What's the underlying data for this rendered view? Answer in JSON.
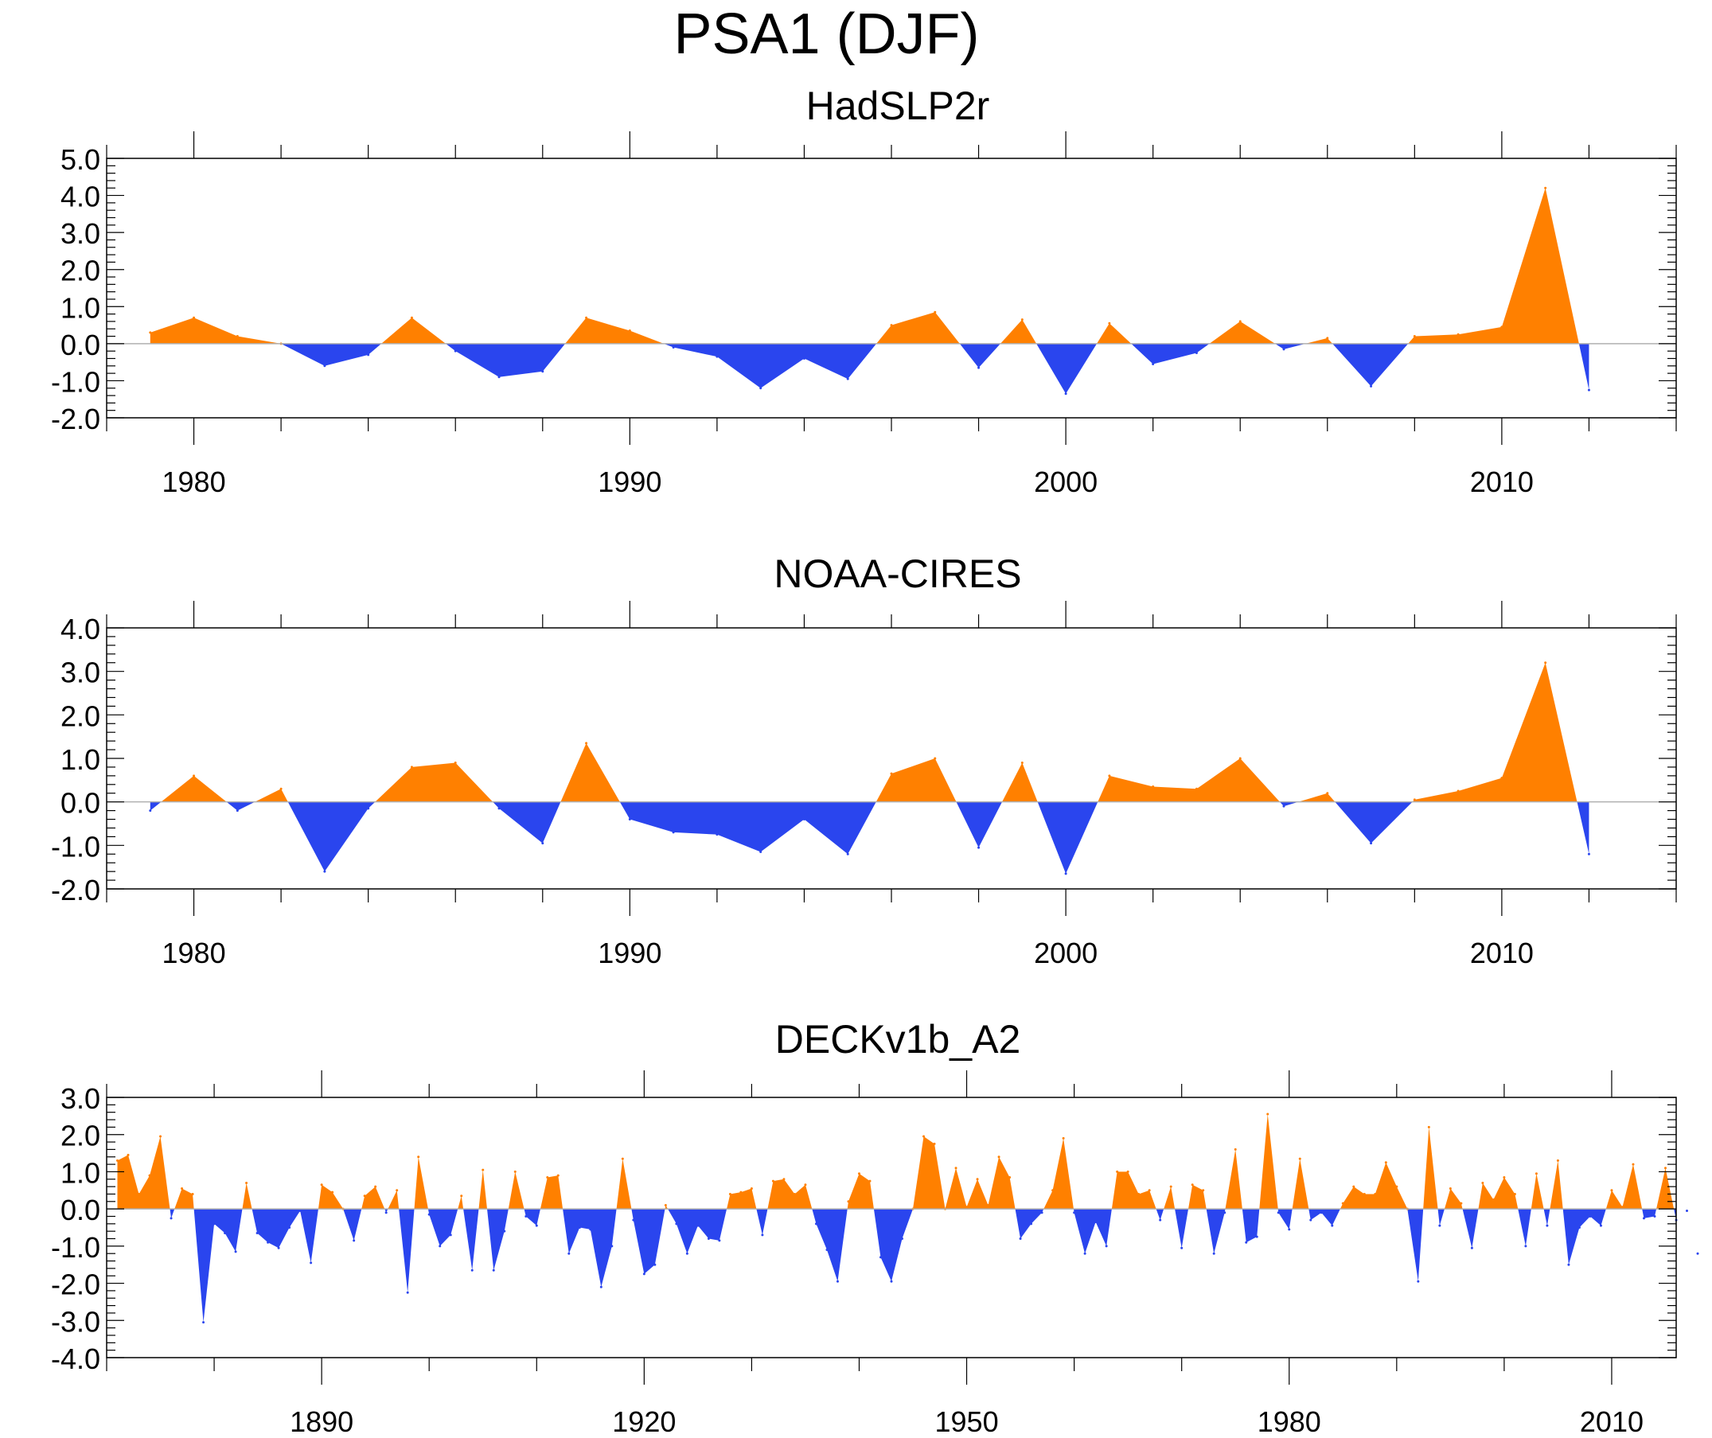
{
  "figure": {
    "title": "PSA1 (DJF)"
  },
  "colors": {
    "positive": "#ff8000",
    "negative": "#2a45ee",
    "axis": "#000000",
    "zero_line": "#b0b0b0"
  },
  "chart_data": [
    {
      "type": "area",
      "title": "HadSLP2r",
      "xlim": [
        1978,
        2014
      ],
      "ylim": [
        -2.0,
        5.0
      ],
      "yticks": [
        "5.0",
        "4.0",
        "3.0",
        "2.0",
        "1.0",
        "0.0",
        "-1.0",
        "-2.0"
      ],
      "xticks": [
        "1980",
        "1990",
        "2000",
        "2010"
      ],
      "x": [
        1979,
        1980,
        1981,
        1982,
        1983,
        1984,
        1985,
        1986,
        1987,
        1988,
        1989,
        1990,
        1991,
        1992,
        1993,
        1994,
        1995,
        1996,
        1997,
        1998,
        1999,
        2000,
        2001,
        2002,
        2003,
        2004,
        2005,
        2006,
        2007,
        2008,
        2009,
        2010,
        2011,
        2012
      ],
      "values": [
        0.3,
        0.7,
        0.2,
        0.0,
        -0.6,
        -0.3,
        0.7,
        -0.2,
        -0.9,
        -0.75,
        0.7,
        0.35,
        -0.1,
        -0.35,
        -1.2,
        -0.4,
        -0.95,
        0.5,
        0.85,
        -0.65,
        0.65,
        -1.35,
        0.55,
        -0.55,
        -0.25,
        0.6,
        -0.15,
        0.15,
        -1.15,
        0.2,
        0.25,
        0.45,
        4.2,
        -1.25
      ]
    },
    {
      "type": "area",
      "title": "NOAA-CIRES",
      "xlim": [
        1978,
        2014
      ],
      "ylim": [
        -2.0,
        4.0
      ],
      "yticks": [
        "4.0",
        "3.0",
        "2.0",
        "1.0",
        "0.0",
        "-1.0",
        "-2.0"
      ],
      "xticks": [
        "1980",
        "1990",
        "2000",
        "2010"
      ],
      "x": [
        1979,
        1980,
        1981,
        1982,
        1983,
        1984,
        1985,
        1986,
        1987,
        1988,
        1989,
        1990,
        1991,
        1992,
        1993,
        1994,
        1995,
        1996,
        1997,
        1998,
        1999,
        2000,
        2001,
        2002,
        2003,
        2004,
        2005,
        2006,
        2007,
        2008,
        2009,
        2010,
        2011,
        2012
      ],
      "values": [
        -0.2,
        0.6,
        -0.2,
        0.3,
        -1.6,
        -0.15,
        0.8,
        0.9,
        -0.15,
        -0.95,
        1.35,
        -0.4,
        -0.7,
        -0.75,
        -1.15,
        -0.4,
        -1.2,
        0.65,
        1.0,
        -1.05,
        0.9,
        -1.65,
        0.6,
        0.35,
        0.3,
        1.0,
        -0.1,
        0.2,
        -0.95,
        0.05,
        0.25,
        0.55,
        3.2,
        -1.2
      ]
    },
    {
      "type": "area",
      "title": "DECKv1b_A2",
      "xlim": [
        1870,
        2016
      ],
      "ylim": [
        -4.0,
        3.0
      ],
      "yticks": [
        "3.0",
        "2.0",
        "1.0",
        "0.0",
        "-1.0",
        "-2.0",
        "-3.0",
        "-4.0"
      ],
      "xticks": [
        "1890",
        "1920",
        "1950",
        "1980",
        "2010"
      ],
      "x_start": 1871,
      "x_step": 1,
      "values": [
        1.3,
        1.45,
        0.4,
        0.9,
        1.95,
        -0.25,
        0.55,
        0.4,
        -3.05,
        -0.4,
        -0.65,
        -1.15,
        0.7,
        -0.65,
        -0.9,
        -1.05,
        -0.5,
        -0.05,
        -1.45,
        0.65,
        0.45,
        0.0,
        -0.85,
        0.35,
        0.6,
        -0.1,
        0.5,
        -2.25,
        1.4,
        -0.15,
        -1.0,
        -0.7,
        0.35,
        -1.65,
        1.05,
        -1.65,
        -0.6,
        1.0,
        -0.2,
        -0.45,
        0.85,
        0.9,
        -1.2,
        -0.5,
        -0.55,
        -2.1,
        -1.0,
        1.35,
        -0.3,
        -1.75,
        -1.5,
        0.1,
        -0.4,
        -1.2,
        -0.45,
        -0.8,
        -0.85,
        0.4,
        0.45,
        0.55,
        -0.7,
        0.75,
        0.8,
        0.4,
        0.65,
        -0.4,
        -1.1,
        -1.95,
        0.2,
        0.95,
        0.75,
        -1.3,
        -1.95,
        -0.8,
        0.0,
        1.95,
        1.75,
        0.0,
        1.1,
        0.05,
        0.8,
        0.1,
        1.4,
        0.85,
        -0.8,
        -0.4,
        -0.1,
        0.5,
        1.9,
        -0.1,
        -1.2,
        -0.35,
        -1.0,
        1.0,
        1.0,
        0.4,
        0.5,
        -0.3,
        0.6,
        -1.05,
        0.65,
        0.5,
        -1.2,
        -0.1,
        1.6,
        -0.9,
        -0.75,
        2.55,
        -0.1,
        -0.55,
        1.35,
        -0.3,
        -0.1,
        -0.45,
        0.15,
        0.6,
        0.4,
        0.4,
        1.25,
        0.6,
        0.0,
        -1.95,
        2.2,
        -0.45,
        0.55,
        0.15,
        -1.05,
        0.7,
        0.25,
        0.85,
        0.4,
        -1.0,
        0.95,
        -0.45,
        1.3,
        -1.5,
        -0.5,
        -0.2,
        -0.45,
        0.5,
        0.05,
        1.2,
        -0.25,
        -0.2,
        1.1,
        -0.3,
        -0.05,
        -1.2
      ]
    }
  ]
}
